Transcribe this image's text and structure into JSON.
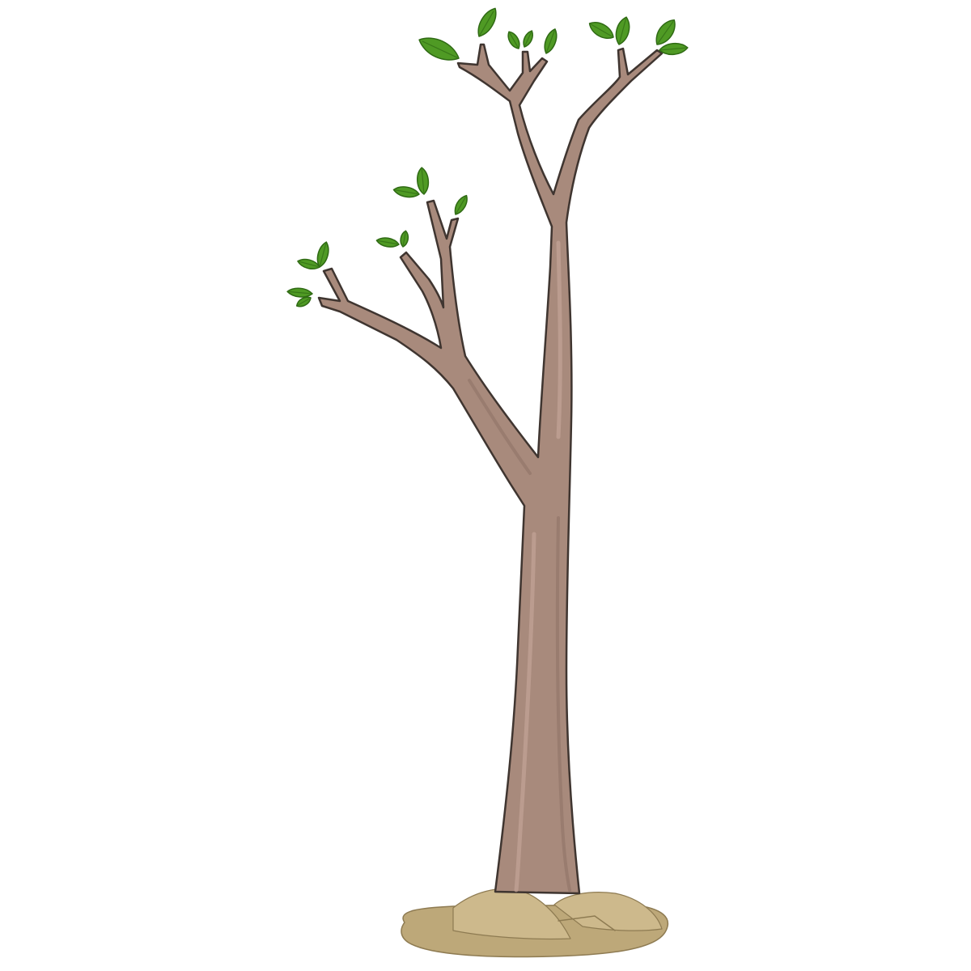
{
  "illustration": {
    "subject": "tree",
    "leaf_count": 19,
    "colors": {
      "bark": "#a88a7c",
      "bark_light": "#c4a699",
      "bark_dark": "#8a6e62",
      "outline": "#3f3530",
      "leaf": "#4f9a24",
      "leaf_dark": "#2f6a14",
      "soil": "#bda879",
      "soil_light": "#cdb98c",
      "soil_dark": "#8e7b52",
      "background": "#ffffff"
    }
  }
}
